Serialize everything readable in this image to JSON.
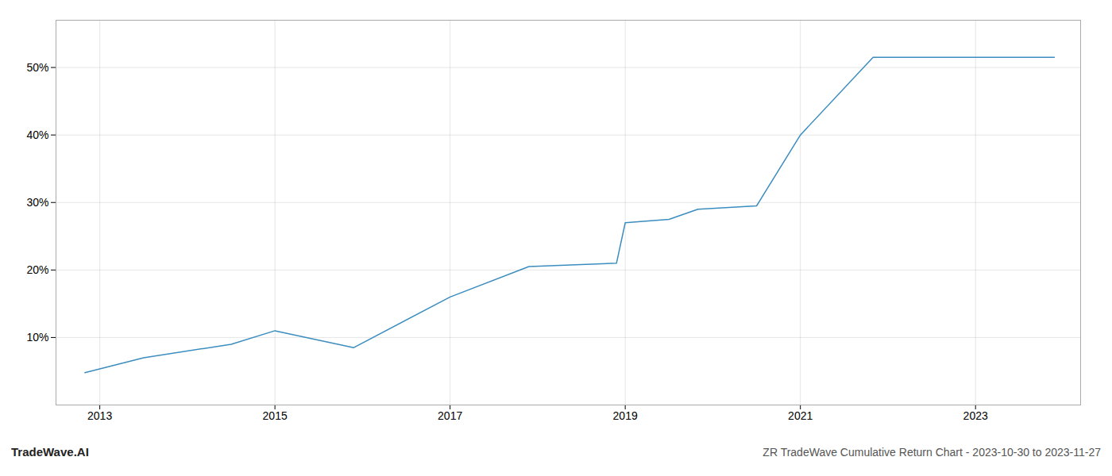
{
  "chart_data": {
    "type": "line",
    "x": [
      2012.83,
      2013.5,
      2014.5,
      2015.0,
      2015.9,
      2017.0,
      2017.9,
      2018.9,
      2019.0,
      2019.5,
      2019.83,
      2020.5,
      2021.0,
      2021.83,
      2022.5,
      2023.0,
      2023.9
    ],
    "values": [
      4.8,
      7.0,
      9.0,
      11.0,
      8.5,
      16.0,
      20.5,
      21.0,
      27.0,
      27.5,
      29.0,
      29.5,
      40.0,
      51.5,
      51.5,
      51.5,
      51.5
    ],
    "color": "#3b8dbf",
    "xlim": [
      2012.5,
      2024.2
    ],
    "ylim": [
      0,
      57
    ],
    "xticks": [
      2013,
      2015,
      2017,
      2019,
      2021,
      2023
    ],
    "yticks": [
      {
        "value": 10,
        "label": "10%"
      },
      {
        "value": 20,
        "label": "20%"
      },
      {
        "value": 30,
        "label": "30%"
      },
      {
        "value": 40,
        "label": "40%"
      },
      {
        "value": 50,
        "label": "50%"
      }
    ],
    "grid": true,
    "annotations": [
      "TradeWave.AI",
      "ZR TradeWave Cumulative Return Chart - 2023-10-30 to 2023-11-27"
    ]
  }
}
